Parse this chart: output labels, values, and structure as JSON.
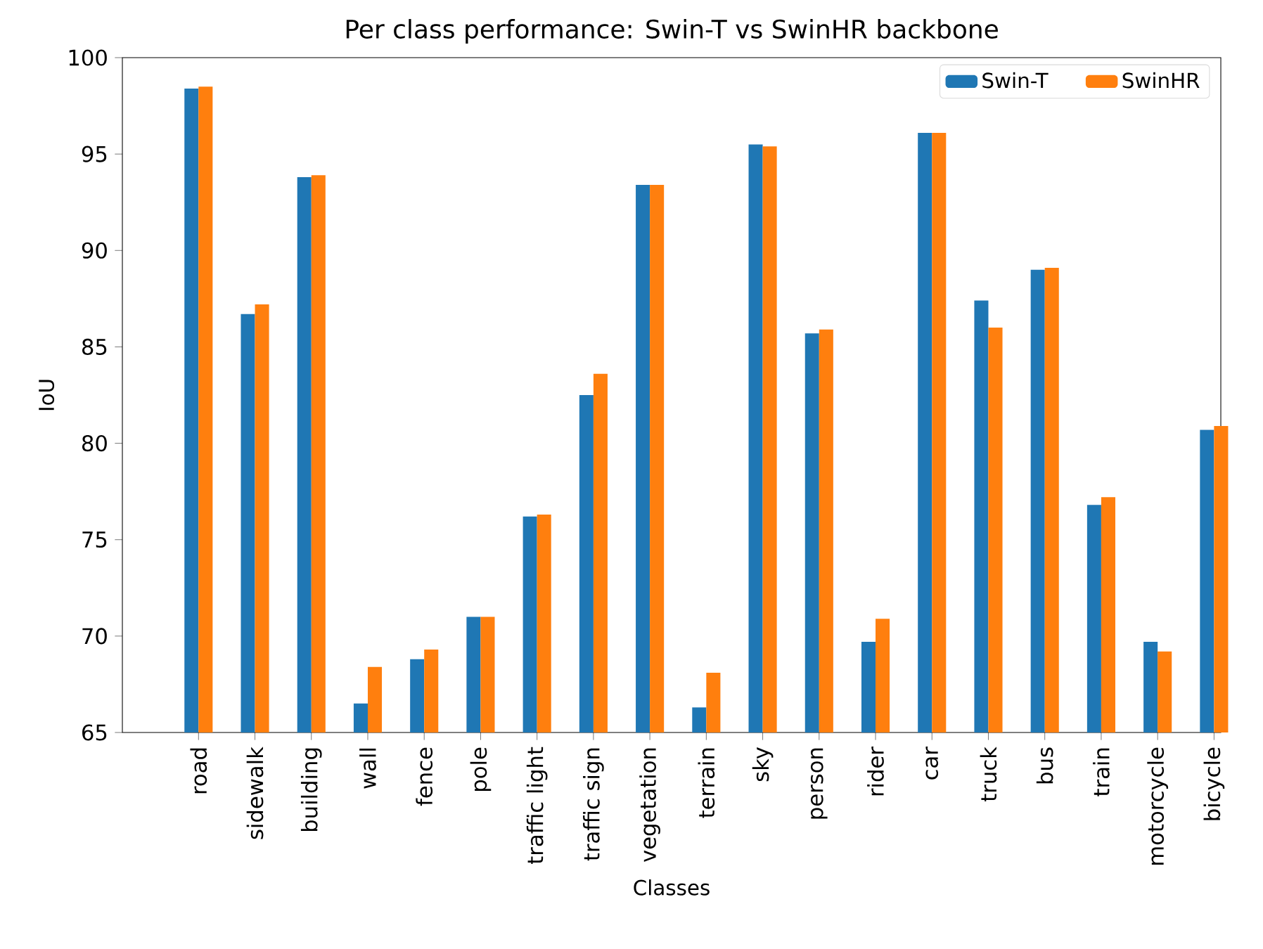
{
  "chart_data": {
    "type": "bar",
    "title": "Per class performance: Swin-T vs SwinHR backbone",
    "xlabel": "Classes",
    "ylabel": "IoU",
    "categories": [
      "road",
      "sidewalk",
      "building",
      "wall",
      "fence",
      "pole",
      "traffic light",
      "traffic sign",
      "vegetation",
      "terrain",
      "sky",
      "person",
      "rider",
      "car",
      "truck",
      "bus",
      "train",
      "motorcycle",
      "bicycle"
    ],
    "series": [
      {
        "name": "Swin-T",
        "color": "#1f77b4",
        "values": [
          98.4,
          86.7,
          93.8,
          66.5,
          68.8,
          71.0,
          76.2,
          82.5,
          93.4,
          66.3,
          95.5,
          85.7,
          69.7,
          96.1,
          87.4,
          89.0,
          76.8,
          69.7,
          80.7
        ]
      },
      {
        "name": "SwinHR",
        "color": "#ff7f0e",
        "values": [
          98.5,
          87.2,
          93.9,
          68.4,
          69.3,
          71.0,
          76.3,
          83.6,
          93.4,
          68.1,
          95.4,
          85.9,
          70.9,
          96.1,
          86.0,
          89.1,
          77.2,
          69.2,
          80.9
        ]
      }
    ],
    "ylim": [
      65,
      100
    ],
    "yticks": [
      65,
      70,
      75,
      80,
      85,
      90,
      95,
      100
    ],
    "legend": "top right",
    "grid": false
  }
}
